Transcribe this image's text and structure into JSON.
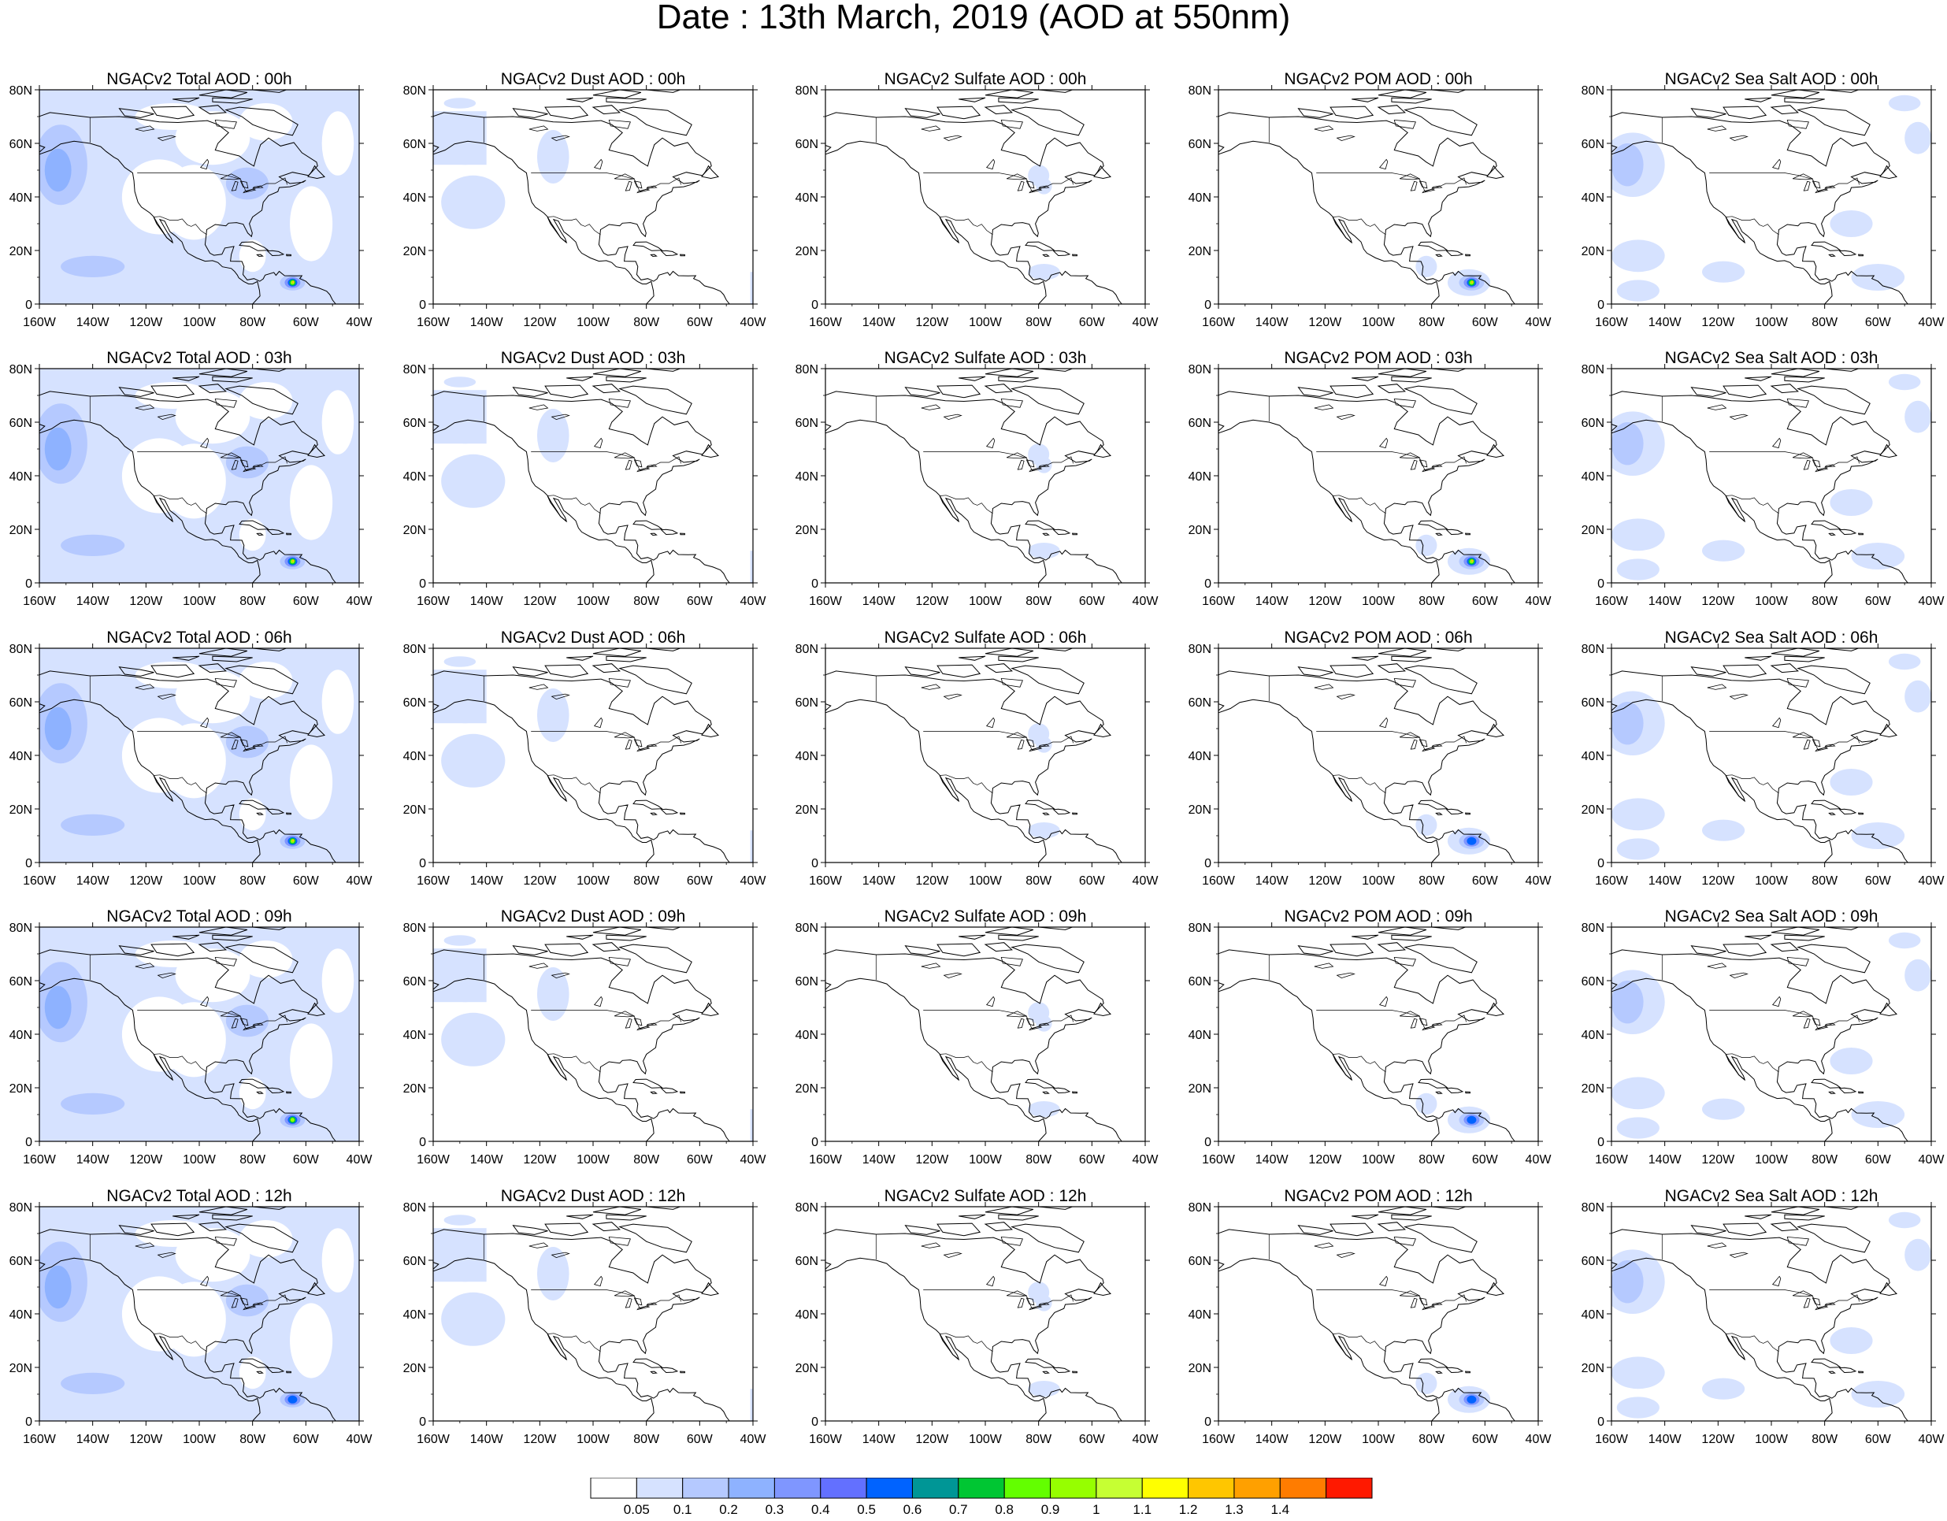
{
  "title": "Date : 13th March, 2019 (AOD at 550nm)",
  "panels": [
    [
      "NGACv2 Total AOD : 00h",
      "NGACv2 Dust AOD : 00h",
      "NGACv2 Sulfate AOD : 00h",
      "NGACv2 POM AOD : 00h",
      "NGACv2 Sea Salt AOD : 00h"
    ],
    [
      "NGACv2 Total AOD : 03h",
      "NGACv2 Dust AOD : 03h",
      "NGACv2 Sulfate AOD : 03h",
      "NGACv2 POM AOD : 03h",
      "NGACv2 Sea Salt AOD : 03h"
    ],
    [
      "NGACv2 Total AOD : 06h",
      "NGACv2 Dust AOD : 06h",
      "NGACv2 Sulfate AOD : 06h",
      "NGACv2 POM AOD : 06h",
      "NGACv2 Sea Salt AOD : 06h"
    ],
    [
      "NGACv2 Total AOD : 09h",
      "NGACv2 Dust AOD : 09h",
      "NGACv2 Sulfate AOD : 09h",
      "NGACv2 POM AOD : 09h",
      "NGACv2 Sea Salt  AOD : 09h"
    ],
    [
      "NGACv2 Total AOD  : 12h",
      "NGACv2 Dust AOD : 12h",
      "NGACv2 Sulfate AOD : 12h",
      "NGACv2 POM  AOD : 12h",
      "NGACv2 Sea Salt  AOD : 12h"
    ]
  ],
  "lat_ticks": [
    "0",
    "20N",
    "40N",
    "60N",
    "80N"
  ],
  "lon_ticks": [
    "160W",
    "140W",
    "120W",
    "100W",
    "80W",
    "60W",
    "40W"
  ],
  "colorbar": {
    "labels": [
      "0.05",
      "0.1",
      "0.2",
      "0.3",
      "0.4",
      "0.5",
      "0.6",
      "0.7",
      "0.8",
      "0.9",
      "1",
      "1.1",
      "1.2",
      "1.3",
      "1.4"
    ],
    "colors": [
      "#ffffff",
      "#d6e2ff",
      "#b5c9ff",
      "#8eb2ff",
      "#7f96ff",
      "#6370ff",
      "#0063ff",
      "#009696",
      "#00c633",
      "#63ff00",
      "#96ff00",
      "#c6ff33",
      "#ffff00",
      "#ffc600",
      "#ffa000",
      "#ff7c00",
      "#ff1900"
    ]
  }
}
